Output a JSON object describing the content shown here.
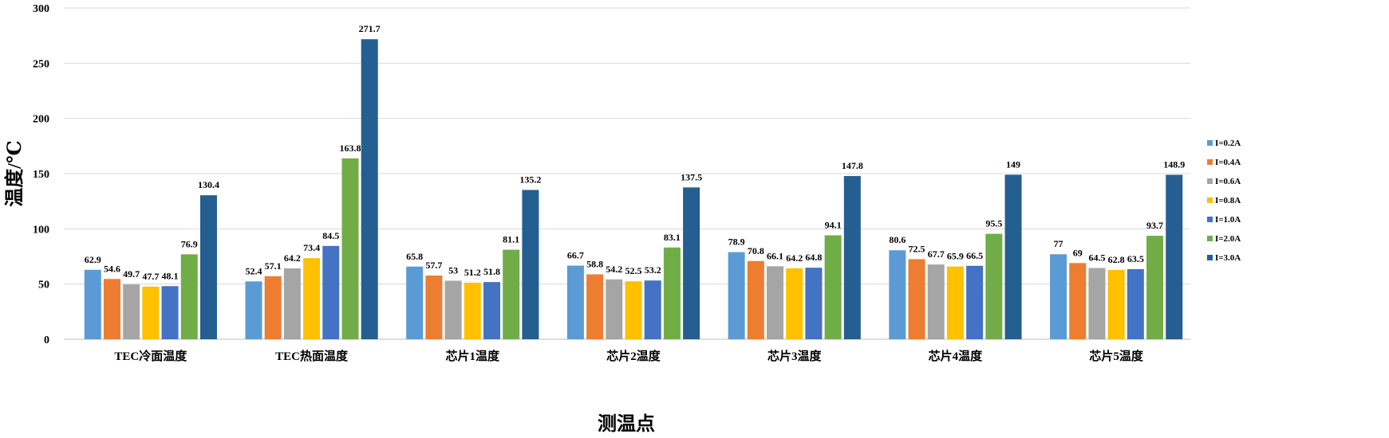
{
  "chart_data": {
    "type": "bar",
    "title": "",
    "xlabel": "测温点",
    "ylabel": "温度/℃",
    "ylim": [
      0,
      300
    ],
    "yticks": [
      "0",
      "50",
      "100",
      "150",
      "200",
      "250",
      "300"
    ],
    "grid": true,
    "legend_position": "right",
    "categories": [
      "TEC冷面温度",
      "TEC热面温度",
      "芯片1温度",
      "芯片2温度",
      "芯片3温度",
      "芯片4温度",
      "芯片5温度"
    ],
    "series": [
      {
        "name": "I=0.2A",
        "color": "#5b9bd5",
        "values": [
          62.9,
          52.4,
          65.8,
          66.7,
          78.9,
          80.6,
          77
        ],
        "labels": [
          "62.9",
          "52.4",
          "65.8",
          "66.7",
          "78.9",
          "80.6",
          "77"
        ]
      },
      {
        "name": "I=0.4A",
        "color": "#ed7d31",
        "values": [
          54.6,
          57.1,
          57.7,
          58.8,
          70.8,
          72.5,
          69
        ],
        "labels": [
          "54.6",
          "57.1",
          "57.7",
          "58.8",
          "70.8",
          "72.5",
          "69"
        ]
      },
      {
        "name": "I=0.6A",
        "color": "#a5a5a5",
        "values": [
          49.7,
          64.2,
          53,
          54.2,
          66.1,
          67.7,
          64.5
        ],
        "labels": [
          "49.7",
          "64.2",
          "53",
          "54.2",
          "66.1",
          "67.7",
          "64.5"
        ]
      },
      {
        "name": "I=0.8A",
        "color": "#ffc000",
        "values": [
          47.7,
          73.4,
          51.2,
          52.5,
          64.2,
          65.9,
          62.8
        ],
        "labels": [
          "47.7",
          "73.4",
          "51.2",
          "52.5",
          "64.2",
          "65.9",
          "62.8"
        ]
      },
      {
        "name": "I=1.0A",
        "color": "#4472c4",
        "values": [
          48.1,
          84.5,
          51.8,
          53.2,
          64.8,
          66.5,
          63.5
        ],
        "labels": [
          "48.1",
          "84.5",
          "51.8",
          "53.2",
          "64.8",
          "66.5",
          "63.5"
        ]
      },
      {
        "name": "I=2.0A",
        "color": "#70ad47",
        "values": [
          76.9,
          163.8,
          81.1,
          83.1,
          94.1,
          95.5,
          93.7
        ],
        "labels": [
          "76.9",
          "163.8",
          "81.1",
          "83.1",
          "94.1",
          "95.5",
          "93.7"
        ]
      },
      {
        "name": "I=3.0A",
        "color": "#255e91",
        "values": [
          130.4,
          271.7,
          135.2,
          137.5,
          147.8,
          149,
          148.9
        ],
        "labels": [
          "130.4",
          "271.7",
          "135.2",
          "137.5",
          "147.8",
          "149",
          "148.9"
        ]
      }
    ]
  }
}
